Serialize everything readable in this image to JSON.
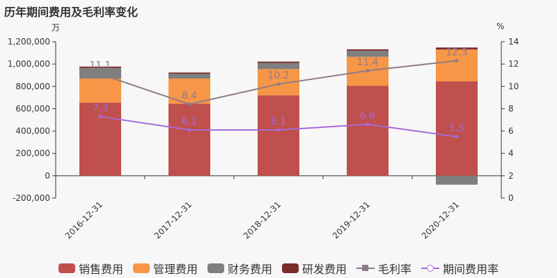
{
  "title": "历年期间费用及毛利率变化",
  "units": {
    "left": "万",
    "right": "%"
  },
  "colors": {
    "sales": "#c0504d",
    "management": "#f79646",
    "finance": "#7f7f7f",
    "rnd": "#7b2c2c",
    "gross_margin": "#8f7b8a",
    "expense_rate": "#a66ad6"
  },
  "legend": [
    {
      "key": "sales",
      "label": "销售费用",
      "kind": "bar"
    },
    {
      "key": "management",
      "label": "管理费用",
      "kind": "bar"
    },
    {
      "key": "finance",
      "label": "财务费用",
      "kind": "bar"
    },
    {
      "key": "rnd",
      "label": "研发费用",
      "kind": "bar"
    },
    {
      "key": "gross_margin",
      "label": "毛利率",
      "kind": "line-square"
    },
    {
      "key": "expense_rate",
      "label": "期间费用率",
      "kind": "line-circle"
    }
  ],
  "chart_data": {
    "type": "bar",
    "stacked": true,
    "categories": [
      "2016-12-31",
      "2017-12-31",
      "2018-12-31",
      "2019-12-31",
      "2020-12-31"
    ],
    "series": [
      {
        "key": "sales",
        "name": "销售费用",
        "values": [
          655000,
          645000,
          720000,
          805000,
          845000
        ]
      },
      {
        "key": "management",
        "name": "管理费用",
        "values": [
          215000,
          225000,
          235000,
          260000,
          285000
        ]
      },
      {
        "key": "finance",
        "name": "财务费用",
        "values": [
          95000,
          42000,
          55000,
          55000,
          -80000
        ]
      },
      {
        "key": "rnd",
        "name": "研发费用",
        "values": [
          12000,
          12000,
          12000,
          12000,
          18000
        ]
      }
    ],
    "lines": [
      {
        "key": "gross_margin",
        "name": "毛利率",
        "values": [
          11.1,
          8.4,
          10.2,
          11.4,
          12.3
        ],
        "labels": [
          "11.1",
          "8.4",
          "10.2",
          "11.4",
          "12.3"
        ]
      },
      {
        "key": "expense_rate",
        "name": "期间费用率",
        "values": [
          7.3,
          6.1,
          6.1,
          6.6,
          5.5
        ],
        "labels": [
          "7.3",
          "6.1",
          "6.1",
          "6.6",
          "5.5"
        ]
      }
    ],
    "y_left": {
      "min": -200000,
      "max": 1200000,
      "ticks": [
        "-200,000",
        "0",
        "200,000",
        "400,000",
        "600,000",
        "800,000",
        "1,000,000",
        "1,200,000"
      ]
    },
    "y_right": {
      "min": 0,
      "max": 14,
      "ticks": [
        "0",
        "2",
        "4",
        "6",
        "8",
        "10",
        "12",
        "14"
      ]
    }
  }
}
